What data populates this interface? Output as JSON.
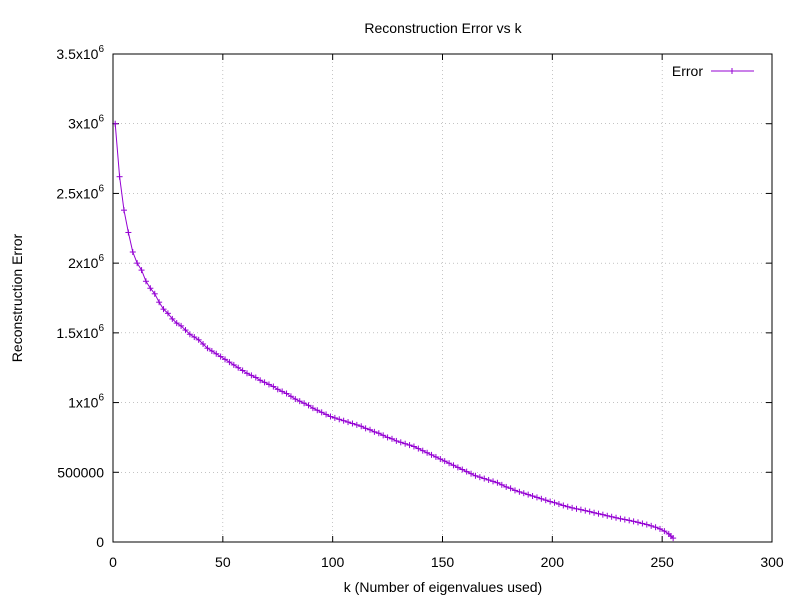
{
  "chart_data": {
    "type": "line",
    "title": "Reconstruction Error vs k",
    "xlabel": "k (Number of eigenvalues used)",
    "ylabel": "Reconstruction Error",
    "xlim": [
      0,
      300
    ],
    "ylim": [
      0,
      3500000
    ],
    "x_ticks": [
      {
        "value": 0,
        "label": "0"
      },
      {
        "value": 50,
        "label": "50"
      },
      {
        "value": 100,
        "label": "100"
      },
      {
        "value": 150,
        "label": "150"
      },
      {
        "value": 200,
        "label": "200"
      },
      {
        "value": 250,
        "label": "250"
      },
      {
        "value": 300,
        "label": "300"
      }
    ],
    "y_ticks": [
      {
        "value": 0,
        "label": "0"
      },
      {
        "value": 500000,
        "label": "500000"
      },
      {
        "value": 1000000,
        "label": "1x10",
        "sup": "6"
      },
      {
        "value": 1500000,
        "label": "1.5x10",
        "sup": "6"
      },
      {
        "value": 2000000,
        "label": "2x10",
        "sup": "6"
      },
      {
        "value": 2500000,
        "label": "2.5x10",
        "sup": "6"
      },
      {
        "value": 3000000,
        "label": "3x10",
        "sup": "6"
      },
      {
        "value": 3500000,
        "label": "3.5x10",
        "sup": "6"
      }
    ],
    "grid": true,
    "legend_position": "top-right",
    "series": [
      {
        "name": "Error",
        "color": "#9400d3",
        "marker": "plus",
        "points": [
          [
            1,
            3000000
          ],
          [
            3,
            2620000
          ],
          [
            5,
            2380000
          ],
          [
            7,
            2220000
          ],
          [
            9,
            2080000
          ],
          [
            11,
            2000000
          ],
          [
            13,
            1950000
          ],
          [
            15,
            1870000
          ],
          [
            17,
            1820000
          ],
          [
            19,
            1780000
          ],
          [
            21,
            1720000
          ],
          [
            23,
            1670000
          ],
          [
            25,
            1640000
          ],
          [
            27,
            1600000
          ],
          [
            29,
            1570000
          ],
          [
            31,
            1550000
          ],
          [
            33,
            1520000
          ],
          [
            35,
            1490000
          ],
          [
            37,
            1470000
          ],
          [
            39,
            1450000
          ],
          [
            41,
            1420000
          ],
          [
            43,
            1390000
          ],
          [
            45,
            1370000
          ],
          [
            47,
            1350000
          ],
          [
            49,
            1330000
          ],
          [
            51,
            1310000
          ],
          [
            53,
            1290000
          ],
          [
            55,
            1270000
          ],
          [
            57,
            1250000
          ],
          [
            59,
            1230000
          ],
          [
            61,
            1210000
          ],
          [
            63,
            1195000
          ],
          [
            65,
            1180000
          ],
          [
            67,
            1160000
          ],
          [
            69,
            1145000
          ],
          [
            71,
            1130000
          ],
          [
            73,
            1115000
          ],
          [
            75,
            1095000
          ],
          [
            77,
            1080000
          ],
          [
            79,
            1065000
          ],
          [
            81,
            1045000
          ],
          [
            83,
            1025000
          ],
          [
            85,
            1010000
          ],
          [
            87,
            995000
          ],
          [
            89,
            980000
          ],
          [
            91,
            960000
          ],
          [
            93,
            945000
          ],
          [
            95,
            930000
          ],
          [
            97,
            915000
          ],
          [
            99,
            900000
          ],
          [
            101,
            890000
          ],
          [
            103,
            880000
          ],
          [
            105,
            870000
          ],
          [
            107,
            860000
          ],
          [
            109,
            850000
          ],
          [
            111,
            840000
          ],
          [
            113,
            830000
          ],
          [
            115,
            815000
          ],
          [
            117,
            805000
          ],
          [
            119,
            790000
          ],
          [
            121,
            780000
          ],
          [
            123,
            765000
          ],
          [
            125,
            750000
          ],
          [
            127,
            740000
          ],
          [
            129,
            725000
          ],
          [
            131,
            715000
          ],
          [
            133,
            705000
          ],
          [
            135,
            695000
          ],
          [
            137,
            685000
          ],
          [
            139,
            670000
          ],
          [
            141,
            655000
          ],
          [
            143,
            640000
          ],
          [
            145,
            625000
          ],
          [
            147,
            610000
          ],
          [
            149,
            595000
          ],
          [
            151,
            580000
          ],
          [
            153,
            565000
          ],
          [
            155,
            550000
          ],
          [
            157,
            535000
          ],
          [
            159,
            520000
          ],
          [
            161,
            505000
          ],
          [
            163,
            490000
          ],
          [
            165,
            475000
          ],
          [
            167,
            465000
          ],
          [
            169,
            455000
          ],
          [
            171,
            445000
          ],
          [
            173,
            435000
          ],
          [
            175,
            425000
          ],
          [
            177,
            410000
          ],
          [
            179,
            395000
          ],
          [
            181,
            385000
          ],
          [
            183,
            370000
          ],
          [
            185,
            360000
          ],
          [
            187,
            350000
          ],
          [
            189,
            340000
          ],
          [
            191,
            330000
          ],
          [
            193,
            320000
          ],
          [
            195,
            310000
          ],
          [
            197,
            300000
          ],
          [
            199,
            290000
          ],
          [
            201,
            282000
          ],
          [
            203,
            272000
          ],
          [
            205,
            262000
          ],
          [
            207,
            253000
          ],
          [
            209,
            245000
          ],
          [
            211,
            238000
          ],
          [
            213,
            232000
          ],
          [
            215,
            225000
          ],
          [
            217,
            218000
          ],
          [
            219,
            210000
          ],
          [
            221,
            203000
          ],
          [
            223,
            196000
          ],
          [
            225,
            188000
          ],
          [
            227,
            181000
          ],
          [
            229,
            174000
          ],
          [
            231,
            167000
          ],
          [
            233,
            161000
          ],
          [
            235,
            155000
          ],
          [
            237,
            148000
          ],
          [
            239,
            141000
          ],
          [
            241,
            133000
          ],
          [
            243,
            125000
          ],
          [
            245,
            116000
          ],
          [
            247,
            106000
          ],
          [
            249,
            94000
          ],
          [
            251,
            78000
          ],
          [
            253,
            58000
          ],
          [
            254,
            42000
          ],
          [
            255,
            28000
          ]
        ]
      }
    ]
  }
}
